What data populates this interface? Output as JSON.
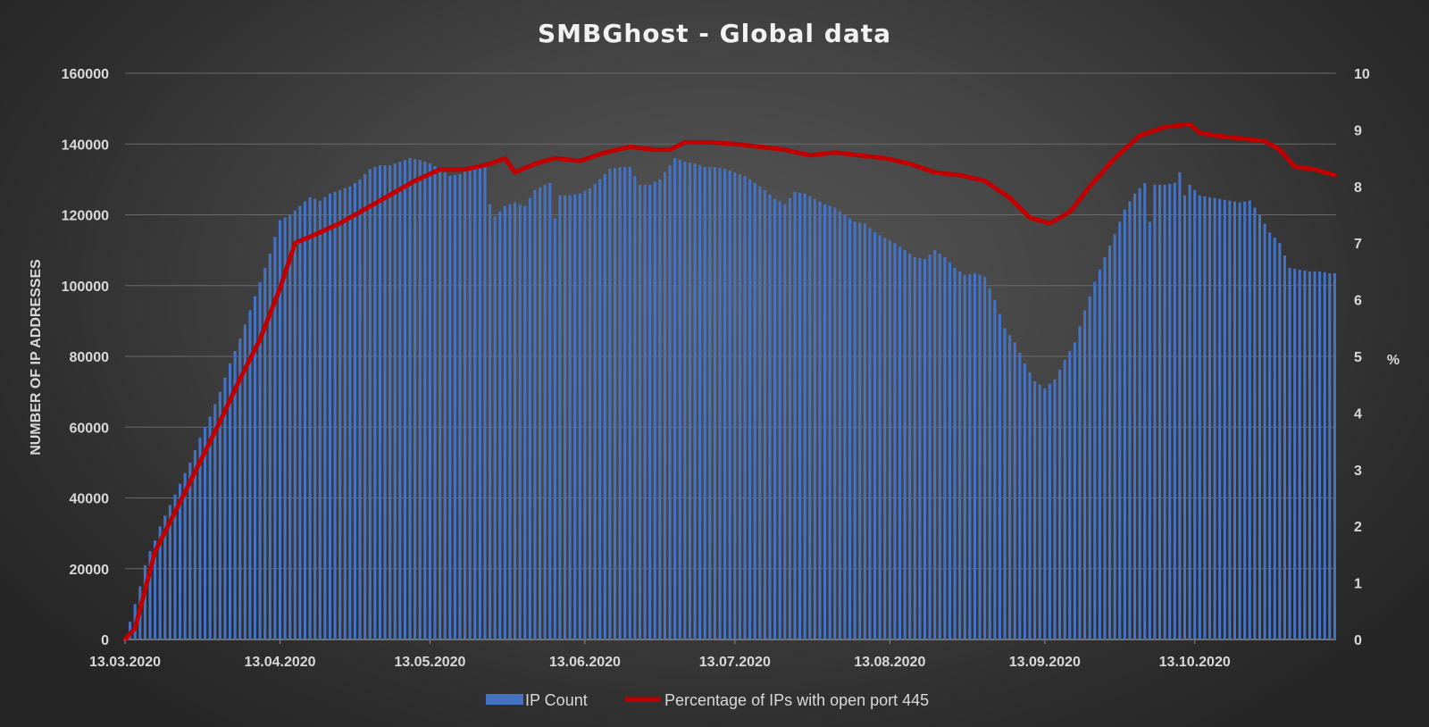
{
  "chart_data": {
    "type": "bar",
    "title": "SMBGhost - Global data",
    "ylabel": "NUMBER OF IP ADDRESSES",
    "y2label": "%",
    "ylim": [
      0,
      160000
    ],
    "y2lim": [
      0,
      10
    ],
    "yticks": [
      "0",
      "20000",
      "40000",
      "60000",
      "80000",
      "100000",
      "120000",
      "140000",
      "160000"
    ],
    "y2ticks": [
      "0",
      "1",
      "2",
      "3",
      "4",
      "5",
      "6",
      "7",
      "8",
      "9",
      "10"
    ],
    "xticks": [
      "13.03.2020",
      "13.04.2020",
      "13.05.2020",
      "13.06.2020",
      "13.07.2020",
      "13.08.2020",
      "13.09.2020",
      "13.10.2020"
    ],
    "xstart": "2020-03-13",
    "xend": "2020-10-25",
    "grid": true,
    "legend_position": "bottom",
    "series": [
      {
        "name": "IP Count",
        "type": "bar",
        "axis": "left",
        "color": "#4472c4",
        "points": [
          [
            "2020-03-13",
            0
          ],
          [
            "2020-03-14",
            5000
          ],
          [
            "2020-03-15",
            10000
          ],
          [
            "2020-03-16",
            15000
          ],
          [
            "2020-03-17",
            21000
          ],
          [
            "2020-03-18",
            25000
          ],
          [
            "2020-03-19",
            28000
          ],
          [
            "2020-03-20",
            32000
          ],
          [
            "2020-03-22",
            38000
          ],
          [
            "2020-03-24",
            44000
          ],
          [
            "2020-03-26",
            50000
          ],
          [
            "2020-03-28",
            57000
          ],
          [
            "2020-03-30",
            63000
          ],
          [
            "2020-04-01",
            70000
          ],
          [
            "2020-04-03",
            78000
          ],
          [
            "2020-04-05",
            85000
          ],
          [
            "2020-04-07",
            93000
          ],
          [
            "2020-04-09",
            101000
          ],
          [
            "2020-04-11",
            109000
          ],
          [
            "2020-04-13",
            118500
          ],
          [
            "2020-04-15",
            120000
          ],
          [
            "2020-04-17",
            122500
          ],
          [
            "2020-04-19",
            125000
          ],
          [
            "2020-04-21",
            124000
          ],
          [
            "2020-04-23",
            126000
          ],
          [
            "2020-04-25",
            127000
          ],
          [
            "2020-04-27",
            128000
          ],
          [
            "2020-04-29",
            130000
          ],
          [
            "2020-05-01",
            133000
          ],
          [
            "2020-05-03",
            134000
          ],
          [
            "2020-05-05",
            134000
          ],
          [
            "2020-05-07",
            135000
          ],
          [
            "2020-05-09",
            136000
          ],
          [
            "2020-05-11",
            135500
          ],
          [
            "2020-05-13",
            134500
          ],
          [
            "2020-05-15",
            133000
          ],
          [
            "2020-05-17",
            131000
          ],
          [
            "2020-05-19",
            131500
          ],
          [
            "2020-05-21",
            133000
          ],
          [
            "2020-05-23",
            133500
          ],
          [
            "2020-05-24",
            134000
          ],
          [
            "2020-05-25",
            123000
          ],
          [
            "2020-05-26",
            119500
          ],
          [
            "2020-05-27",
            121000
          ],
          [
            "2020-05-28",
            122500
          ],
          [
            "2020-05-30",
            123500
          ],
          [
            "2020-06-01",
            122500
          ],
          [
            "2020-06-03",
            127000
          ],
          [
            "2020-06-05",
            128500
          ],
          [
            "2020-06-06",
            129000
          ],
          [
            "2020-06-07",
            119000
          ],
          [
            "2020-06-08",
            125500
          ],
          [
            "2020-06-10",
            125500
          ],
          [
            "2020-06-12",
            126000
          ],
          [
            "2020-06-14",
            127500
          ],
          [
            "2020-06-16",
            130000
          ],
          [
            "2020-06-18",
            133000
          ],
          [
            "2020-06-20",
            133500
          ],
          [
            "2020-06-22",
            133500
          ],
          [
            "2020-06-24",
            128500
          ],
          [
            "2020-06-26",
            128500
          ],
          [
            "2020-06-28",
            130000
          ],
          [
            "2020-06-30",
            134000
          ],
          [
            "2020-07-01",
            136000
          ],
          [
            "2020-07-03",
            135000
          ],
          [
            "2020-07-05",
            134500
          ],
          [
            "2020-07-07",
            133500
          ],
          [
            "2020-07-09",
            133500
          ],
          [
            "2020-07-11",
            133000
          ],
          [
            "2020-07-13",
            132000
          ],
          [
            "2020-07-15",
            131000
          ],
          [
            "2020-07-17",
            129000
          ],
          [
            "2020-07-19",
            127000
          ],
          [
            "2020-07-21",
            124500
          ],
          [
            "2020-07-23",
            123000
          ],
          [
            "2020-07-25",
            126500
          ],
          [
            "2020-07-27",
            126000
          ],
          [
            "2020-07-29",
            124500
          ],
          [
            "2020-07-31",
            123000
          ],
          [
            "2020-08-02",
            122000
          ],
          [
            "2020-08-04",
            120000
          ],
          [
            "2020-08-06",
            118000
          ],
          [
            "2020-08-08",
            117500
          ],
          [
            "2020-08-10",
            115000
          ],
          [
            "2020-08-12",
            113500
          ],
          [
            "2020-08-14",
            112000
          ],
          [
            "2020-08-16",
            110000
          ],
          [
            "2020-08-18",
            108000
          ],
          [
            "2020-08-20",
            107500
          ],
          [
            "2020-08-22",
            110000
          ],
          [
            "2020-08-24",
            108000
          ],
          [
            "2020-08-26",
            105000
          ],
          [
            "2020-08-28",
            103000
          ],
          [
            "2020-08-30",
            103500
          ],
          [
            "2020-09-01",
            102500
          ],
          [
            "2020-09-03",
            96000
          ],
          [
            "2020-09-05",
            88000
          ],
          [
            "2020-09-07",
            84000
          ],
          [
            "2020-09-09",
            78000
          ],
          [
            "2020-09-11",
            73000
          ],
          [
            "2020-09-13",
            71000
          ],
          [
            "2020-09-15",
            73500
          ],
          [
            "2020-09-17",
            79000
          ],
          [
            "2020-09-19",
            84000
          ],
          [
            "2020-09-21",
            93000
          ],
          [
            "2020-09-23",
            101000
          ],
          [
            "2020-09-25",
            108000
          ],
          [
            "2020-09-27",
            114500
          ],
          [
            "2020-09-29",
            121500
          ],
          [
            "2020-10-01",
            126000
          ],
          [
            "2020-10-03",
            129000
          ],
          [
            "2020-10-04",
            118000
          ],
          [
            "2020-10-05",
            128500
          ],
          [
            "2020-10-07",
            128500
          ],
          [
            "2020-10-09",
            129000
          ],
          [
            "2020-10-10",
            132000
          ],
          [
            "2020-10-11",
            125500
          ],
          [
            "2020-10-12",
            128500
          ],
          [
            "2020-10-14",
            125500
          ],
          [
            "2020-10-16",
            125000
          ],
          [
            "2020-10-18",
            124500
          ],
          [
            "2020-10-20",
            124000
          ],
          [
            "2020-10-22",
            123500
          ],
          [
            "2020-10-24",
            124000
          ],
          [
            "2020-10-26",
            120000
          ],
          [
            "2020-10-28",
            115000
          ],
          [
            "2020-10-30",
            112000
          ],
          [
            "2020-11-01",
            105000
          ],
          [
            "2020-11-03",
            104500
          ],
          [
            "2020-11-05",
            104000
          ],
          [
            "2020-11-07",
            104000
          ],
          [
            "2020-11-09",
            103500
          ],
          [
            "2020-11-10",
            103500
          ]
        ]
      },
      {
        "name": "Percentage of IPs with open port 445",
        "type": "line",
        "axis": "right",
        "color": "#c00000",
        "points": [
          [
            "2020-03-13",
            0
          ],
          [
            "2020-03-15",
            0.2
          ],
          [
            "2020-03-19",
            1.55
          ],
          [
            "2020-03-25",
            2.6
          ],
          [
            "2020-04-01",
            3.85
          ],
          [
            "2020-04-05",
            4.6
          ],
          [
            "2020-04-09",
            5.3
          ],
          [
            "2020-04-13",
            6.2
          ],
          [
            "2020-04-16",
            7.0
          ],
          [
            "2020-04-20",
            7.15
          ],
          [
            "2020-04-25",
            7.35
          ],
          [
            "2020-04-30",
            7.6
          ],
          [
            "2020-05-05",
            7.85
          ],
          [
            "2020-05-10",
            8.1
          ],
          [
            "2020-05-15",
            8.3
          ],
          [
            "2020-05-20",
            8.3
          ],
          [
            "2020-05-25",
            8.4
          ],
          [
            "2020-05-28",
            8.5
          ],
          [
            "2020-05-30",
            8.25
          ],
          [
            "2020-06-03",
            8.4
          ],
          [
            "2020-06-07",
            8.5
          ],
          [
            "2020-06-12",
            8.45
          ],
          [
            "2020-06-17",
            8.6
          ],
          [
            "2020-06-22",
            8.7
          ],
          [
            "2020-06-27",
            8.65
          ],
          [
            "2020-06-30",
            8.65
          ],
          [
            "2020-07-03",
            8.78
          ],
          [
            "2020-07-08",
            8.78
          ],
          [
            "2020-07-13",
            8.75
          ],
          [
            "2020-07-18",
            8.7
          ],
          [
            "2020-07-23",
            8.65
          ],
          [
            "2020-07-28",
            8.55
          ],
          [
            "2020-08-02",
            8.6
          ],
          [
            "2020-08-07",
            8.55
          ],
          [
            "2020-08-12",
            8.5
          ],
          [
            "2020-08-17",
            8.4
          ],
          [
            "2020-08-22",
            8.25
          ],
          [
            "2020-08-27",
            8.2
          ],
          [
            "2020-09-01",
            8.1
          ],
          [
            "2020-09-06",
            7.8
          ],
          [
            "2020-09-10",
            7.45
          ],
          [
            "2020-09-14",
            7.35
          ],
          [
            "2020-09-18",
            7.55
          ],
          [
            "2020-09-22",
            8.0
          ],
          [
            "2020-09-27",
            8.5
          ],
          [
            "2020-10-02",
            8.9
          ],
          [
            "2020-10-07",
            9.05
          ],
          [
            "2020-10-12",
            9.1
          ],
          [
            "2020-10-14",
            8.95
          ],
          [
            "2020-10-17",
            8.9
          ],
          [
            "2020-10-22",
            8.85
          ],
          [
            "2020-10-27",
            8.8
          ],
          [
            "2020-10-30",
            8.65
          ],
          [
            "2020-11-02",
            8.35
          ],
          [
            "2020-11-06",
            8.3
          ],
          [
            "2020-11-10",
            8.2
          ]
        ]
      }
    ]
  }
}
